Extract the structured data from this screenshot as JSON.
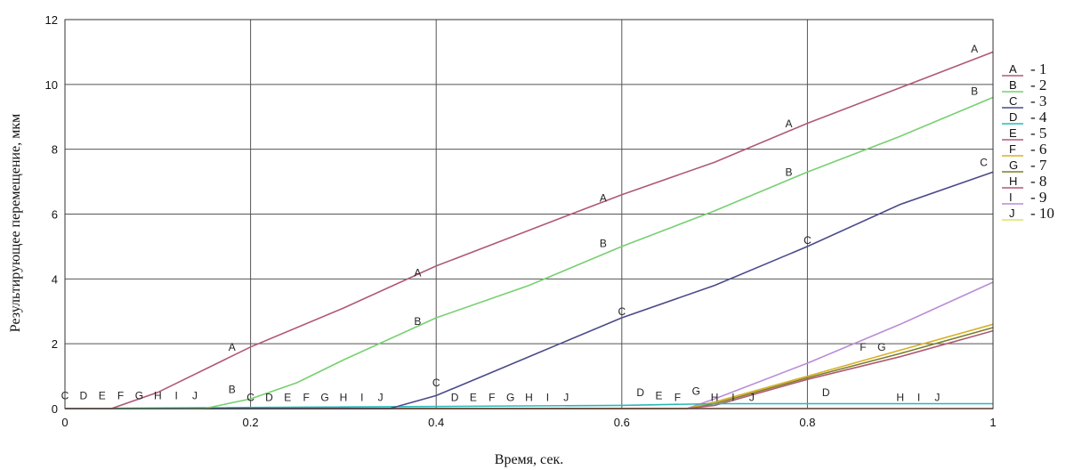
{
  "chart_data": {
    "type": "line",
    "xlabel": "Время, сек.",
    "ylabel": "Результирующее перемещение, мкм",
    "xlim": [
      0,
      1
    ],
    "ylim": [
      0,
      12
    ],
    "xticks": [
      "0",
      "0.2",
      "0.4",
      "0.6",
      "0.8",
      "1"
    ],
    "yticks": [
      "0",
      "2",
      "4",
      "6",
      "8",
      "10",
      "12"
    ],
    "grid": true,
    "legend_position": "right",
    "series": [
      {
        "marker": "A",
        "legend_number": "1",
        "color": "#b05a72",
        "x": [
          0,
          0.05,
          0.1,
          0.2,
          0.3,
          0.4,
          0.5,
          0.6,
          0.7,
          0.8,
          0.9,
          1.0
        ],
        "y": [
          0,
          0,
          0.5,
          1.9,
          3.1,
          4.4,
          5.5,
          6.6,
          7.6,
          8.8,
          9.9,
          11.0
        ],
        "labels": [
          {
            "x": 0.18,
            "y": 1.7
          },
          {
            "x": 0.38,
            "y": 4.0
          },
          {
            "x": 0.58,
            "y": 6.3
          },
          {
            "x": 0.78,
            "y": 8.6
          },
          {
            "x": 0.98,
            "y": 10.9
          }
        ]
      },
      {
        "marker": "B",
        "legend_number": "2",
        "color": "#77d070",
        "x": [
          0,
          0.15,
          0.2,
          0.25,
          0.3,
          0.4,
          0.5,
          0.6,
          0.7,
          0.8,
          0.9,
          1.0
        ],
        "y": [
          0,
          0,
          0.3,
          0.8,
          1.5,
          2.8,
          3.8,
          5.0,
          6.1,
          7.3,
          8.4,
          9.6
        ],
        "labels": [
          {
            "x": 0.18,
            "y": 0.4
          },
          {
            "x": 0.38,
            "y": 2.5
          },
          {
            "x": 0.58,
            "y": 4.9
          },
          {
            "x": 0.78,
            "y": 7.1
          },
          {
            "x": 0.98,
            "y": 9.6
          }
        ]
      },
      {
        "marker": "C",
        "legend_number": "3",
        "color": "#4a4a8a",
        "x": [
          0,
          0.35,
          0.4,
          0.45,
          0.5,
          0.6,
          0.7,
          0.8,
          0.9,
          1.0
        ],
        "y": [
          0,
          0,
          0.4,
          1.0,
          1.6,
          2.8,
          3.8,
          5.0,
          6.3,
          7.3
        ],
        "labels": [
          {
            "x": 0.0,
            "y": 0.2
          },
          {
            "x": 0.2,
            "y": 0.15
          },
          {
            "x": 0.4,
            "y": 0.6
          },
          {
            "x": 0.6,
            "y": 2.8
          },
          {
            "x": 0.8,
            "y": 5.0
          },
          {
            "x": 0.99,
            "y": 7.4
          }
        ]
      },
      {
        "marker": "D",
        "legend_number": "4",
        "color": "#28b8b8",
        "x": [
          0,
          0.6,
          0.7,
          1.0
        ],
        "y": [
          0,
          0.1,
          0.15,
          0.15
        ],
        "labels": [
          {
            "x": 0.02,
            "y": 0.2
          },
          {
            "x": 0.22,
            "y": 0.15
          },
          {
            "x": 0.42,
            "y": 0.15
          },
          {
            "x": 0.62,
            "y": 0.3
          },
          {
            "x": 0.82,
            "y": 0.3
          }
        ]
      },
      {
        "marker": "E",
        "legend_number": "5",
        "color": "#b05a72",
        "x": [
          0,
          0.67,
          0.7,
          0.8,
          0.9,
          1.0
        ],
        "y": [
          0,
          0,
          0.1,
          0.9,
          1.6,
          2.4
        ],
        "labels": [
          {
            "x": 0.04,
            "y": 0.2
          },
          {
            "x": 0.24,
            "y": 0.15
          },
          {
            "x": 0.44,
            "y": 0.15
          },
          {
            "x": 0.64,
            "y": 0.2
          }
        ]
      },
      {
        "marker": "F",
        "legend_number": "6",
        "color": "#d6b028",
        "x": [
          0,
          0.67,
          0.7,
          0.8,
          0.9,
          1.0
        ],
        "y": [
          0,
          0,
          0.2,
          1.0,
          1.8,
          2.6
        ],
        "labels": [
          {
            "x": 0.06,
            "y": 0.2
          },
          {
            "x": 0.26,
            "y": 0.15
          },
          {
            "x": 0.46,
            "y": 0.15
          },
          {
            "x": 0.66,
            "y": 0.15
          },
          {
            "x": 0.86,
            "y": 1.7
          }
        ]
      },
      {
        "marker": "G",
        "legend_number": "7",
        "color": "#7e7e2a",
        "x": [
          0,
          0.67,
          0.7,
          0.8,
          0.9,
          1.0
        ],
        "y": [
          0,
          0,
          0.15,
          0.95,
          1.7,
          2.5
        ],
        "labels": [
          {
            "x": 0.08,
            "y": 0.2
          },
          {
            "x": 0.28,
            "y": 0.15
          },
          {
            "x": 0.48,
            "y": 0.15
          },
          {
            "x": 0.68,
            "y": 0.35
          },
          {
            "x": 0.88,
            "y": 1.7
          }
        ]
      },
      {
        "marker": "H",
        "legend_number": "8",
        "color": "#b05a72",
        "x": [
          0,
          1.0
        ],
        "y": [
          0,
          0
        ],
        "labels": [
          {
            "x": 0.1,
            "y": 0.2
          },
          {
            "x": 0.3,
            "y": 0.15
          },
          {
            "x": 0.5,
            "y": 0.15
          },
          {
            "x": 0.7,
            "y": 0.15
          },
          {
            "x": 0.9,
            "y": 0.15
          }
        ]
      },
      {
        "marker": "I",
        "legend_number": "9",
        "color": "#b98cd6",
        "x": [
          0,
          0.67,
          0.7,
          0.8,
          0.9,
          1.0
        ],
        "y": [
          0,
          0,
          0.3,
          1.4,
          2.6,
          3.9
        ],
        "labels": [
          {
            "x": 0.12,
            "y": 0.2
          },
          {
            "x": 0.32,
            "y": 0.15
          },
          {
            "x": 0.52,
            "y": 0.15
          },
          {
            "x": 0.72,
            "y": 0.15
          },
          {
            "x": 0.92,
            "y": 0.15
          }
        ]
      },
      {
        "marker": "J",
        "legend_number": "10",
        "color": "#e0e060",
        "x": [
          0,
          1.0
        ],
        "y": [
          0,
          0
        ],
        "labels": [
          {
            "x": 0.14,
            "y": 0.2
          },
          {
            "x": 0.34,
            "y": 0.15
          },
          {
            "x": 0.54,
            "y": 0.15
          },
          {
            "x": 0.74,
            "y": 0.15
          },
          {
            "x": 0.94,
            "y": 0.15
          }
        ]
      }
    ]
  }
}
